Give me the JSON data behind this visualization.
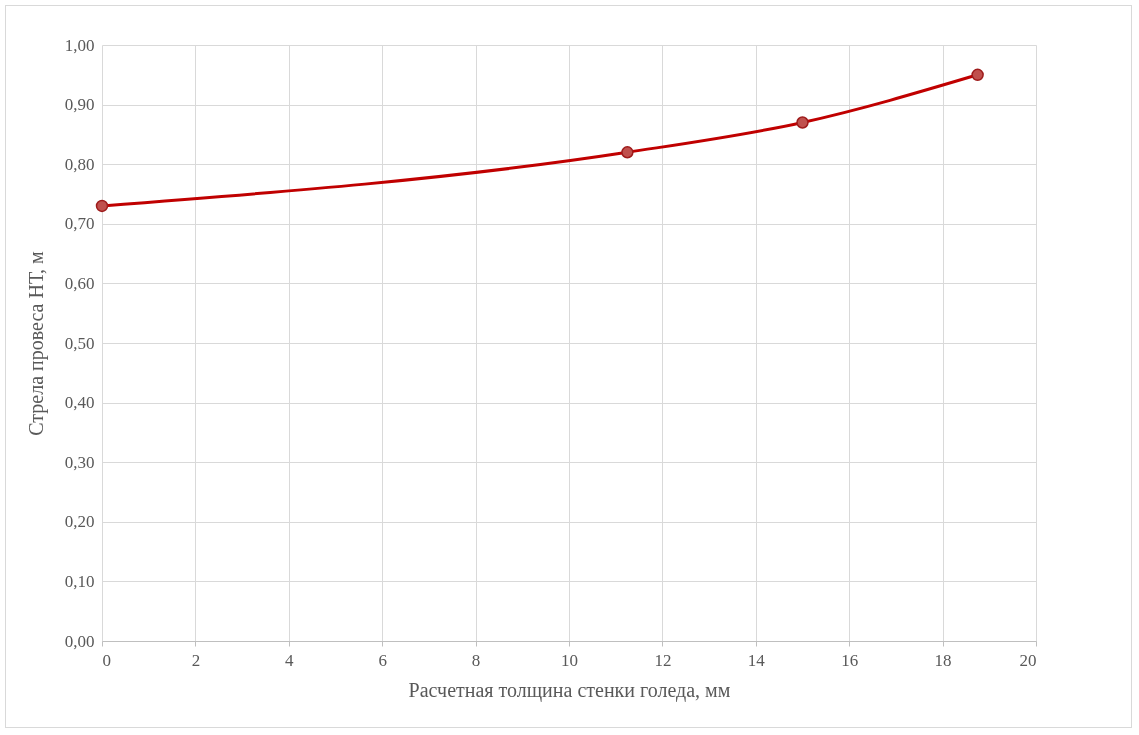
{
  "chart_data": {
    "type": "line",
    "xlabel": "Расчетная толщина стенки голеда, мм",
    "ylabel": "Стрела провеса НТ, м",
    "x": [
      0,
      11.25,
      15,
      18.75
    ],
    "series": [
      {
        "color": "#c00000",
        "values": [
          0.73,
          0.82,
          0.87,
          0.95
        ]
      }
    ],
    "xlim": [
      0,
      20
    ],
    "xticks": [
      0,
      2,
      4,
      6,
      8,
      10,
      12,
      14,
      16,
      18,
      20
    ],
    "ylim": [
      0,
      1
    ],
    "yticks": [
      {
        "value": 0,
        "label": "0,00"
      },
      {
        "value": 0.1,
        "label": "0,10"
      },
      {
        "value": 0.2,
        "label": "0,20"
      },
      {
        "value": 0.3,
        "label": "0,30"
      },
      {
        "value": 0.4,
        "label": "0,40"
      },
      {
        "value": 0.5,
        "label": "0,50"
      },
      {
        "value": 0.6,
        "label": "0,60"
      },
      {
        "value": 0.7,
        "label": "0,70"
      },
      {
        "value": 0.8,
        "label": "0,80"
      },
      {
        "value": 0.9,
        "label": "0,90"
      },
      {
        "value": 1,
        "label": "1,00"
      }
    ],
    "grid": true,
    "marker": "circle",
    "line_style": "solid",
    "legend": false
  }
}
